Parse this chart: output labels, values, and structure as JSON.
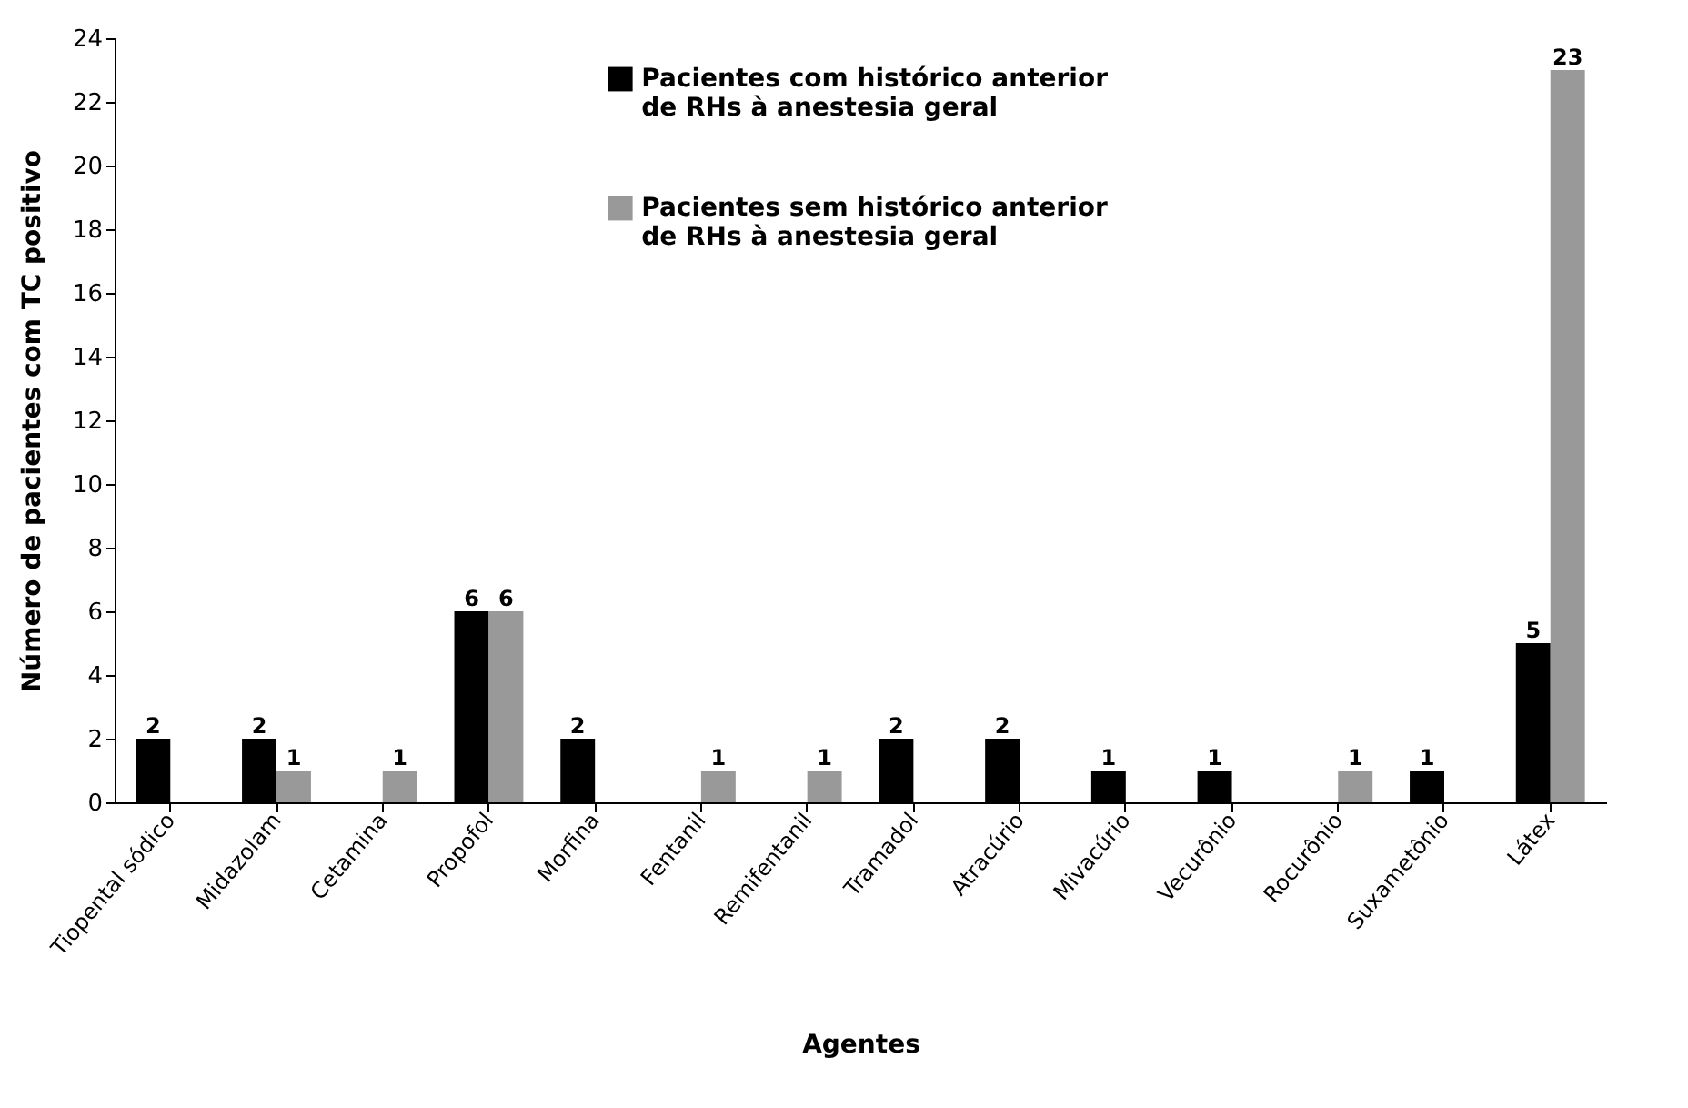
{
  "chart_data": {
    "type": "bar",
    "xlabel": "Agentes",
    "ylabel": "Número de pacientes com TC positivo",
    "categories": [
      "Tiopental sódico",
      "Midazolam",
      "Cetamina",
      "Propofol",
      "Morfina",
      "Fentanil",
      "Remifentanil",
      "Tramadol",
      "Atracúrio",
      "Mivacúrio",
      "Vecurônio",
      "Rocurônio",
      "Suxametônio",
      "Látex"
    ],
    "series": [
      {
        "name": "Pacientes com histórico anterior de RHs à anestesia geral",
        "color": "#000000",
        "values": [
          2,
          2,
          null,
          6,
          2,
          null,
          null,
          2,
          2,
          1,
          1,
          null,
          1,
          5
        ]
      },
      {
        "name": "Pacientes sem histórico anterior de RHs à anestesia geral",
        "color": "#999999",
        "values": [
          null,
          1,
          1,
          6,
          null,
          1,
          1,
          null,
          null,
          null,
          null,
          1,
          null,
          23
        ]
      }
    ],
    "ylim": [
      0,
      24
    ],
    "yticks": [
      0,
      2,
      4,
      6,
      8,
      10,
      12,
      14,
      16,
      18,
      20,
      22,
      24
    ],
    "grid": false,
    "legend": "top",
    "data_labels": true
  }
}
